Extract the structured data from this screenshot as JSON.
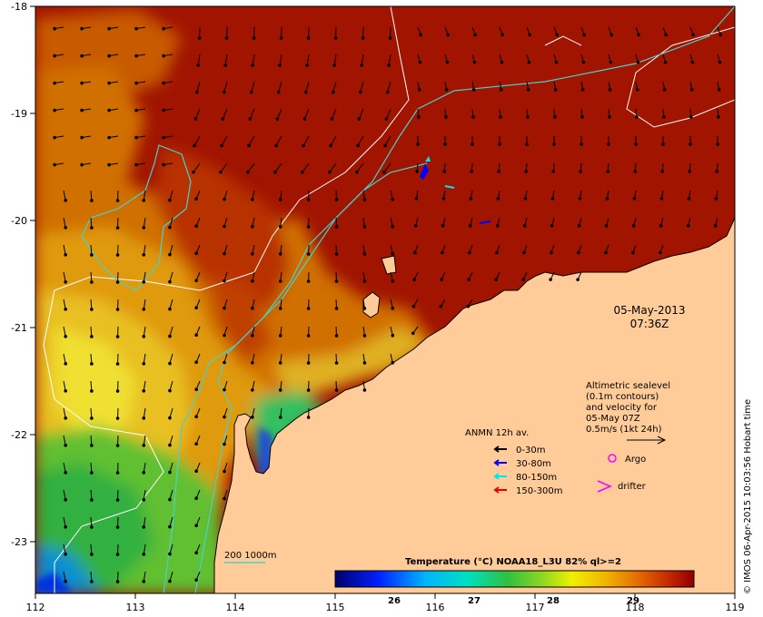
{
  "map": {
    "date": "05-May-2013",
    "time": "07:36Z",
    "credit": "© IMOS 06-Apr-2015 10:03:56 Hobart time",
    "lon_ticks": [
      "112",
      "113",
      "114",
      "115",
      "116",
      "117",
      "118",
      "119"
    ],
    "lat_ticks": [
      "-18",
      "-19",
      "-20",
      "-21",
      "-22",
      "-23"
    ]
  },
  "legend": {
    "altimetric": [
      "Altimetric sealevel",
      "(0.1m contours)",
      "and velocity for",
      "05-May 07Z",
      "0.5m/s (1kt 24h)"
    ],
    "anmn_title": "ANMN 12h av.",
    "anmn_items": [
      {
        "label": "0-30m",
        "color": "#000000"
      },
      {
        "label": "30-80m",
        "color": "#0000ff"
      },
      {
        "label": "80-150m",
        "color": "#00e5ee"
      },
      {
        "label": "150-300m",
        "color": "#ee0000"
      }
    ],
    "argo_label": "Argo",
    "drifter_label": "drifter",
    "isobath_label": "200  1000m"
  },
  "colorbar": {
    "title": "Temperature (°C) NOAA18_L3U 82% ql>=2",
    "ticks": [
      "26",
      "27",
      "28",
      "29"
    ]
  },
  "colors": {
    "land": "#ffcc99",
    "warm": "#a01400",
    "argo": "#ff00ff",
    "drifter": "#ff00ff",
    "isobath": "#48d1cc"
  }
}
